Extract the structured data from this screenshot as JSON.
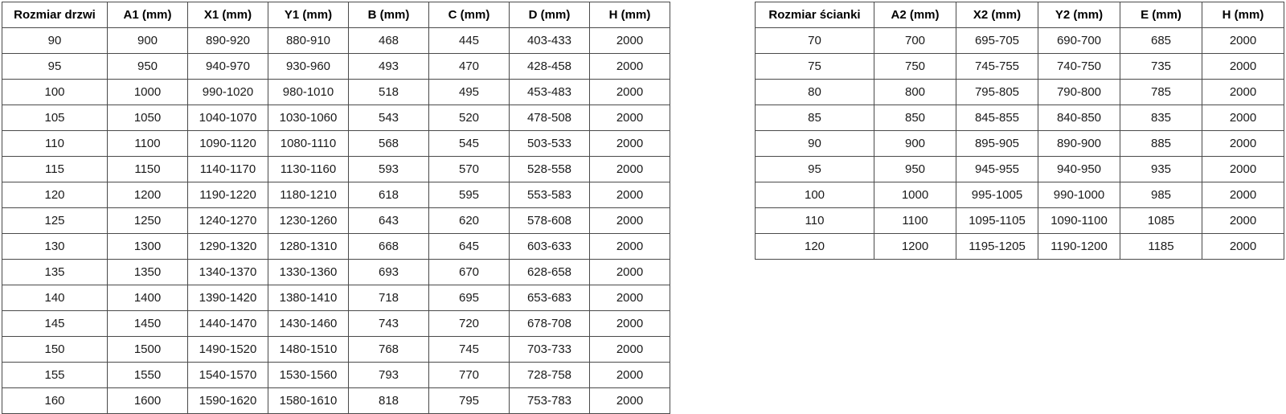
{
  "page": {
    "background_color": "#ffffff",
    "text_color": "#1a1a1a",
    "border_color": "#4a4a4a"
  },
  "door_table": {
    "headers": [
      "Rozmiar drzwi",
      "A1 (mm)",
      "X1 (mm)",
      "Y1 (mm)",
      "B (mm)",
      "C (mm)",
      "D (mm)",
      "H (mm)"
    ],
    "rows": [
      [
        "90",
        "900",
        "890-920",
        "880-910",
        "468",
        "445",
        "403-433",
        "2000"
      ],
      [
        "95",
        "950",
        "940-970",
        "930-960",
        "493",
        "470",
        "428-458",
        "2000"
      ],
      [
        "100",
        "1000",
        "990-1020",
        "980-1010",
        "518",
        "495",
        "453-483",
        "2000"
      ],
      [
        "105",
        "1050",
        "1040-1070",
        "1030-1060",
        "543",
        "520",
        "478-508",
        "2000"
      ],
      [
        "110",
        "1100",
        "1090-1120",
        "1080-1110",
        "568",
        "545",
        "503-533",
        "2000"
      ],
      [
        "115",
        "1150",
        "1140-1170",
        "1130-1160",
        "593",
        "570",
        "528-558",
        "2000"
      ],
      [
        "120",
        "1200",
        "1190-1220",
        "1180-1210",
        "618",
        "595",
        "553-583",
        "2000"
      ],
      [
        "125",
        "1250",
        "1240-1270",
        "1230-1260",
        "643",
        "620",
        "578-608",
        "2000"
      ],
      [
        "130",
        "1300",
        "1290-1320",
        "1280-1310",
        "668",
        "645",
        "603-633",
        "2000"
      ],
      [
        "135",
        "1350",
        "1340-1370",
        "1330-1360",
        "693",
        "670",
        "628-658",
        "2000"
      ],
      [
        "140",
        "1400",
        "1390-1420",
        "1380-1410",
        "718",
        "695",
        "653-683",
        "2000"
      ],
      [
        "145",
        "1450",
        "1440-1470",
        "1430-1460",
        "743",
        "720",
        "678-708",
        "2000"
      ],
      [
        "150",
        "1500",
        "1490-1520",
        "1480-1510",
        "768",
        "745",
        "703-733",
        "2000"
      ],
      [
        "155",
        "1550",
        "1540-1570",
        "1530-1560",
        "793",
        "770",
        "728-758",
        "2000"
      ],
      [
        "160",
        "1600",
        "1590-1620",
        "1580-1610",
        "818",
        "795",
        "753-783",
        "2000"
      ]
    ]
  },
  "panel_table": {
    "headers": [
      "Rozmiar ścianki",
      "A2 (mm)",
      "X2 (mm)",
      "Y2 (mm)",
      "E (mm)",
      "H (mm)"
    ],
    "rows": [
      [
        "70",
        "700",
        "695-705",
        "690-700",
        "685",
        "2000"
      ],
      [
        "75",
        "750",
        "745-755",
        "740-750",
        "735",
        "2000"
      ],
      [
        "80",
        "800",
        "795-805",
        "790-800",
        "785",
        "2000"
      ],
      [
        "85",
        "850",
        "845-855",
        "840-850",
        "835",
        "2000"
      ],
      [
        "90",
        "900",
        "895-905",
        "890-900",
        "885",
        "2000"
      ],
      [
        "95",
        "950",
        "945-955",
        "940-950",
        "935",
        "2000"
      ],
      [
        "100",
        "1000",
        "995-1005",
        "990-1000",
        "985",
        "2000"
      ],
      [
        "110",
        "1100",
        "1095-1105",
        "1090-1100",
        "1085",
        "2000"
      ],
      [
        "120",
        "1200",
        "1195-1205",
        "1190-1200",
        "1185",
        "2000"
      ]
    ]
  }
}
